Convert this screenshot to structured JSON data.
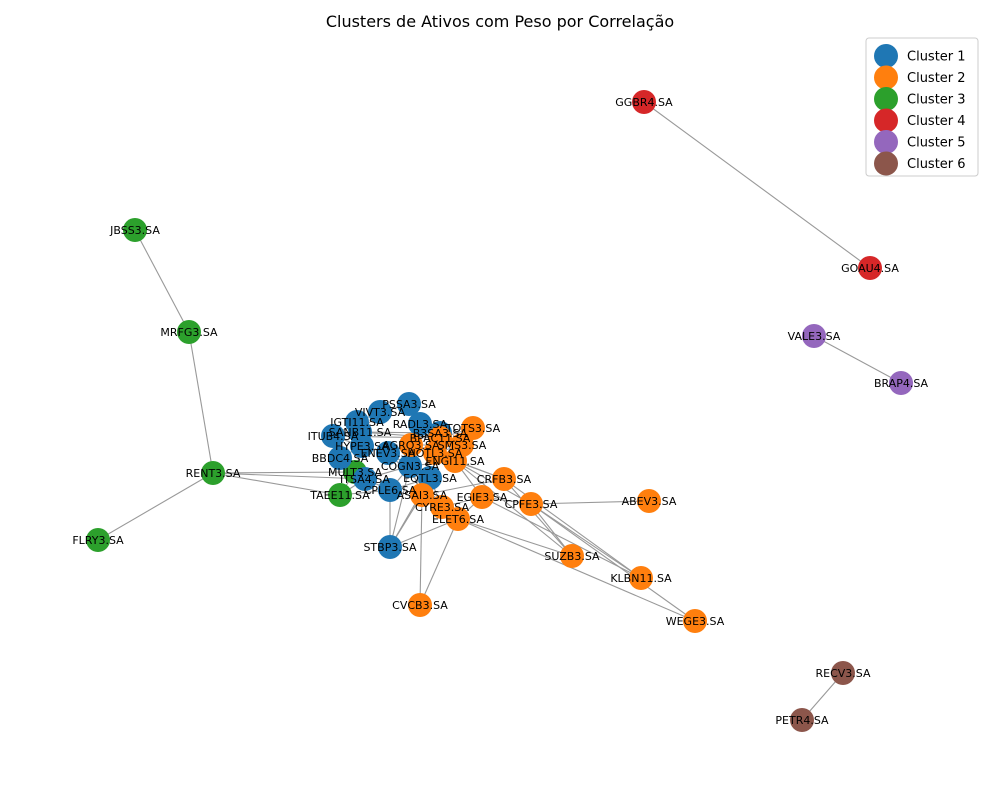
{
  "title": "Clusters de Ativos com Peso por Correlação",
  "colors": {
    "1": "#1f77b4",
    "2": "#ff7f0e",
    "3": "#2ca02c",
    "4": "#d62728",
    "5": "#9467bd",
    "6": "#8c564b"
  },
  "legend": [
    {
      "label": "Cluster 1",
      "cluster": "1"
    },
    {
      "label": "Cluster 2",
      "cluster": "2"
    },
    {
      "label": "Cluster 3",
      "cluster": "3"
    },
    {
      "label": "Cluster 4",
      "cluster": "4"
    },
    {
      "label": "Cluster 5",
      "cluster": "5"
    },
    {
      "label": "Cluster 6",
      "cluster": "6"
    }
  ],
  "nodes": [
    {
      "id": "GGBR4.SA",
      "cluster": "4"
    },
    {
      "id": "GOAU4.SA",
      "cluster": "4"
    },
    {
      "id": "VALE3.SA",
      "cluster": "5"
    },
    {
      "id": "BRAP4.SA",
      "cluster": "5"
    },
    {
      "id": "RECV3.SA",
      "cluster": "6"
    },
    {
      "id": "PETR4.SA",
      "cluster": "6"
    },
    {
      "id": "JBSS3.SA",
      "cluster": "3"
    },
    {
      "id": "MRFG3.SA",
      "cluster": "3"
    },
    {
      "id": "RENT3.SA",
      "cluster": "3"
    },
    {
      "id": "FLRY3.SA",
      "cluster": "3"
    },
    {
      "id": "MULT3.SA",
      "cluster": "3"
    },
    {
      "id": "TAEE11.SA",
      "cluster": "3"
    },
    {
      "id": "PSSA3.SA",
      "cluster": "1"
    },
    {
      "id": "VIVT3.SA",
      "cluster": "1"
    },
    {
      "id": "IGTI11.SA",
      "cluster": "1"
    },
    {
      "id": "RADL3.SA",
      "cluster": "1"
    },
    {
      "id": "B3SA3.SA",
      "cluster": "1"
    },
    {
      "id": "SANB11.SA",
      "cluster": "1"
    },
    {
      "id": "ITUB4.SA",
      "cluster": "1"
    },
    {
      "id": "HYPE3.SA",
      "cluster": "1"
    },
    {
      "id": "BBDC4.SA",
      "cluster": "1"
    },
    {
      "id": "ENEV3.SA",
      "cluster": "1"
    },
    {
      "id": "COGN3.SA",
      "cluster": "1"
    },
    {
      "id": "ITSA4.SA",
      "cluster": "1"
    },
    {
      "id": "CPLE6.SA",
      "cluster": "1"
    },
    {
      "id": "EQTL3.SA",
      "cluster": "1"
    },
    {
      "id": "STBP3.SA",
      "cluster": "1"
    },
    {
      "id": "TOTS3.SA",
      "cluster": "2"
    },
    {
      "id": "BPAC11.SA",
      "cluster": "2"
    },
    {
      "id": "AGRO3.SA",
      "cluster": "2"
    },
    {
      "id": "SMS3.SA",
      "cluster": "2"
    },
    {
      "id": "HOTL3.SA",
      "cluster": "2"
    },
    {
      "id": "ENGI11.SA",
      "cluster": "2"
    },
    {
      "id": "CRFB3.SA",
      "cluster": "2"
    },
    {
      "id": "ASAI3.SA",
      "cluster": "2"
    },
    {
      "id": "EGIE3.SA",
      "cluster": "2"
    },
    {
      "id": "CPFE3.SA",
      "cluster": "2"
    },
    {
      "id": "CYRE3.SA",
      "cluster": "2"
    },
    {
      "id": "ELET6.SA",
      "cluster": "2"
    },
    {
      "id": "ABEV3.SA",
      "cluster": "2"
    },
    {
      "id": "SUZB3.SA",
      "cluster": "2"
    },
    {
      "id": "KLBN11.SA",
      "cluster": "2"
    },
    {
      "id": "WEGE3.SA",
      "cluster": "2"
    },
    {
      "id": "CVCB3.SA",
      "cluster": "2"
    }
  ],
  "edges": [
    [
      "GGBR4.SA",
      "GOAU4.SA"
    ],
    [
      "VALE3.SA",
      "BRAP4.SA"
    ],
    [
      "RECV3.SA",
      "PETR4.SA"
    ],
    [
      "JBSS3.SA",
      "MRFG3.SA"
    ],
    [
      "MRFG3.SA",
      "RENT3.SA"
    ],
    [
      "RENT3.SA",
      "FLRY3.SA"
    ],
    [
      "RENT3.SA",
      "MULT3.SA"
    ],
    [
      "RENT3.SA",
      "TAEE11.SA"
    ],
    [
      "RENT3.SA",
      "ITSA4.SA"
    ],
    [
      "STBP3.SA",
      "COGN3.SA"
    ],
    [
      "STBP3.SA",
      "ELET6.SA"
    ],
    [
      "STBP3.SA",
      "ASAI3.SA"
    ],
    [
      "STBP3.SA",
      "EQTL3.SA"
    ],
    [
      "STBP3.SA",
      "CPLE6.SA"
    ],
    [
      "CVCB3.SA",
      "ASAI3.SA"
    ],
    [
      "CVCB3.SA",
      "ELET6.SA"
    ],
    [
      "ABEV3.SA",
      "CPFE3.SA"
    ],
    [
      "SUZB3.SA",
      "CPFE3.SA"
    ],
    [
      "SUZB3.SA",
      "CRFB3.SA"
    ],
    [
      "SUZB3.SA",
      "ELET6.SA"
    ],
    [
      "SUZB3.SA",
      "ENGI11.SA"
    ],
    [
      "KLBN11.SA",
      "CRFB3.SA"
    ],
    [
      "KLBN11.SA",
      "CPFE3.SA"
    ],
    [
      "KLBN11.SA",
      "EGIE3.SA"
    ],
    [
      "WEGE3.SA",
      "ELET6.SA"
    ],
    [
      "WEGE3.SA",
      "CPFE3.SA"
    ],
    [
      "CPFE3.SA",
      "EGIE3.SA"
    ],
    [
      "CPFE3.SA",
      "ENGI11.SA"
    ],
    [
      "CRFB3.SA",
      "ASAI3.SA"
    ],
    [
      "CRFB3.SA",
      "ENGI11.SA"
    ],
    [
      "CRFB3.SA",
      "HOTL3.SA"
    ],
    [
      "EGIE3.SA",
      "ELET6.SA"
    ],
    [
      "EGIE3.SA",
      "ENGI11.SA"
    ],
    [
      "EGIE3.SA",
      "CYRE3.SA"
    ],
    [
      "ELET6.SA",
      "CYRE3.SA"
    ],
    [
      "ELET6.SA",
      "ENEV3.SA"
    ],
    [
      "TOTS3.SA",
      "BPAC11.SA"
    ],
    [
      "TOTS3.SA",
      "HOTL3.SA"
    ],
    [
      "BPAC11.SA",
      "SANB11.SA"
    ],
    [
      "BPAC11.SA",
      "ITUB4.SA"
    ],
    [
      "BPAC11.SA",
      "B3SA3.SA"
    ],
    [
      "AGRO3.SA",
      "SMS3.SA"
    ],
    [
      "AGRO3.SA",
      "HOTL3.SA"
    ],
    [
      "HOTL3.SA",
      "ENGI11.SA"
    ],
    [
      "HOTL3.SA",
      "SMS3.SA"
    ],
    [
      "ENGI11.SA",
      "COGN3.SA"
    ],
    [
      "ASAI3.SA",
      "CYRE3.SA"
    ],
    [
      "ASAI3.SA",
      "COGN3.SA"
    ],
    [
      "PSSA3.SA",
      "VIVT3.SA"
    ],
    [
      "PSSA3.SA",
      "RADL3.SA"
    ],
    [
      "VIVT3.SA",
      "IGTI11.SA"
    ],
    [
      "VIVT3.SA",
      "SANB11.SA"
    ],
    [
      "IGTI11.SA",
      "ITUB4.SA"
    ],
    [
      "IGTI11.SA",
      "SANB11.SA"
    ],
    [
      "RADL3.SA",
      "B3SA3.SA"
    ],
    [
      "SANB11.SA",
      "ITUB4.SA"
    ],
    [
      "SANB11.SA",
      "HYPE3.SA"
    ],
    [
      "SANB11.SA",
      "B3SA3.SA"
    ],
    [
      "ITUB4.SA",
      "HYPE3.SA"
    ],
    [
      "ITUB4.SA",
      "BBDC4.SA"
    ],
    [
      "HYPE3.SA",
      "ENEV3.SA"
    ],
    [
      "HYPE3.SA",
      "BBDC4.SA"
    ],
    [
      "BBDC4.SA",
      "ITSA4.SA"
    ],
    [
      "BBDC4.SA",
      "MULT3.SA"
    ],
    [
      "ENEV3.SA",
      "COGN3.SA"
    ],
    [
      "ENEV3.SA",
      "AGRO3.SA"
    ],
    [
      "COGN3.SA",
      "ITSA4.SA"
    ],
    [
      "COGN3.SA",
      "CPLE6.SA"
    ],
    [
      "COGN3.SA",
      "EQTL3.SA"
    ],
    [
      "ITSA4.SA",
      "CPLE6.SA"
    ],
    [
      "ITSA4.SA",
      "MULT3.SA"
    ],
    [
      "ITSA4.SA",
      "TAEE11.SA"
    ],
    [
      "CPLE6.SA",
      "TAEE11.SA"
    ],
    [
      "CPLE6.SA",
      "EQTL3.SA"
    ],
    [
      "EQTL3.SA",
      "ASAI3.SA"
    ],
    [
      "EQTL3.SA",
      "CYRE3.SA"
    ],
    [
      "MULT3.SA",
      "TAEE11.SA"
    ],
    [
      "MULT3.SA",
      "HYPE3.SA"
    ],
    [
      "B3SA3.SA",
      "HOTL3.SA"
    ],
    [
      "B3SA3.SA",
      "SMS3.SA"
    ]
  ]
}
